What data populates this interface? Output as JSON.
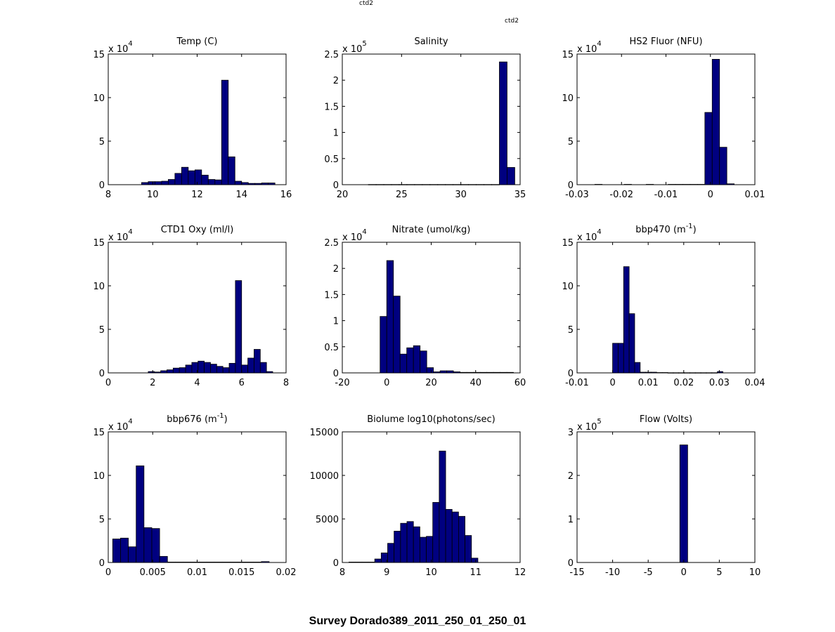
{
  "header": {
    "label1": "ctd2",
    "label2": "ctd2"
  },
  "suptitle": "Survey Dorado389_2011_250_01_250_01",
  "style": {
    "bar_fill": "#000080",
    "bar_stroke": "#000000"
  },
  "chart_data": [
    {
      "type": "bar",
      "title": "Temp (C)",
      "exp": "4",
      "xlim": [
        8,
        16
      ],
      "ylim": [
        0,
        15
      ],
      "xticks": [
        8,
        10,
        12,
        14,
        16
      ],
      "yticks": [
        0,
        5,
        10,
        15
      ],
      "xticklabels": [
        "8",
        "10",
        "12",
        "14",
        "16"
      ],
      "yticklabels": [
        "0",
        "5",
        "10",
        "15"
      ],
      "bin_start": 9.5,
      "bin_width": 0.3,
      "values": [
        0.25,
        0.35,
        0.35,
        0.4,
        0.6,
        1.3,
        2.0,
        1.6,
        1.7,
        1.1,
        0.6,
        0.55,
        12.0,
        3.2,
        0.4,
        0.25,
        0.15,
        0.15,
        0.2,
        0.2
      ]
    },
    {
      "type": "bar",
      "title": "Salinity",
      "exp": "5",
      "xlim": [
        20,
        35
      ],
      "ylim": [
        0,
        2.5
      ],
      "xticks": [
        20,
        25,
        30,
        35
      ],
      "yticks": [
        0,
        0.5,
        1,
        1.5,
        2,
        2.5
      ],
      "xticklabels": [
        "20",
        "25",
        "30",
        "35"
      ],
      "yticklabels": [
        "0",
        "0.5",
        "1",
        "1.5",
        "2",
        "2.5"
      ],
      "bin_start": 22.2,
      "bin_width": 0.65,
      "values": [
        0.004,
        0.004,
        0.004,
        0.004,
        0.004,
        0.004,
        0.004,
        0.004,
        0.004,
        0.004,
        0.004,
        0.004,
        0.004,
        0.004,
        0.004,
        0.004,
        0.004,
        2.35,
        0.33
      ]
    },
    {
      "type": "bar",
      "title": "HS2 Fluor (NFU)",
      "exp": "4",
      "xlim": [
        -0.03,
        0.01
      ],
      "ylim": [
        0,
        15
      ],
      "xticks": [
        -0.03,
        -0.02,
        -0.01,
        0,
        0.01
      ],
      "yticks": [
        0,
        5,
        10,
        15
      ],
      "xticklabels": [
        "-0.03",
        "-0.02",
        "-0.01",
        "0",
        "0.01"
      ],
      "yticklabels": [
        "0",
        "5",
        "10",
        "15"
      ],
      "bin_start": -0.026,
      "bin_width": 0.00165,
      "values": [
        0.04,
        0.0,
        0.0,
        0.0,
        0.04,
        0.0,
        0.0,
        0.04,
        0.0,
        0.0,
        0.04,
        0.04,
        0.04,
        0.04,
        0.04,
        8.3,
        14.4,
        4.3,
        0.1
      ]
    },
    {
      "type": "bar",
      "title": "CTD1 Oxy (ml/l)",
      "exp": "4",
      "xlim": [
        0,
        8
      ],
      "ylim": [
        0,
        15
      ],
      "xticks": [
        0,
        2,
        4,
        6,
        8
      ],
      "yticks": [
        0,
        5,
        10,
        15
      ],
      "xticklabels": [
        "0",
        "2",
        "4",
        "6",
        "8"
      ],
      "yticklabels": [
        "0",
        "5",
        "10",
        "15"
      ],
      "bin_start": 1.8,
      "bin_width": 0.28,
      "values": [
        0.15,
        0.1,
        0.25,
        0.35,
        0.55,
        0.6,
        0.9,
        1.2,
        1.35,
        1.2,
        1.0,
        0.75,
        0.6,
        1.1,
        10.6,
        0.9,
        1.7,
        2.7,
        1.2,
        0.15
      ]
    },
    {
      "type": "bar",
      "title": "Nitrate (umol/kg)",
      "exp": "4",
      "xlim": [
        -20,
        60
      ],
      "ylim": [
        0,
        2.5
      ],
      "xticks": [
        -20,
        0,
        20,
        40,
        60
      ],
      "yticks": [
        0,
        0.5,
        1,
        1.5,
        2,
        2.5
      ],
      "xticklabels": [
        "-20",
        "0",
        "20",
        "40",
        "60"
      ],
      "yticklabels": [
        "0",
        "0.5",
        "1",
        "1.5",
        "2",
        "2.5"
      ],
      "bin_start": -3,
      "bin_width": 3.0,
      "values": [
        1.08,
        2.15,
        1.47,
        0.36,
        0.48,
        0.52,
        0.42,
        0.1,
        0.02,
        0.04,
        0.04,
        0.02,
        0.01,
        0.01,
        0.01,
        0.01,
        0.01,
        0.01,
        0.01,
        0.01
      ]
    },
    {
      "type": "bar",
      "title": "bbp470 (m",
      "title_sup": "-1",
      "title_tail": ")",
      "exp": "4",
      "xlim": [
        -0.01,
        0.04
      ],
      "ylim": [
        0,
        15
      ],
      "xticks": [
        -0.01,
        0,
        0.01,
        0.02,
        0.03,
        0.04
      ],
      "yticks": [
        0,
        5,
        10,
        15
      ],
      "xticklabels": [
        "-0.01",
        "0",
        "0.01",
        "0.02",
        "0.03",
        "0.04"
      ],
      "yticklabels": [
        "0",
        "5",
        "10",
        "15"
      ],
      "bin_start": 0.0,
      "bin_width": 0.00155,
      "values": [
        3.4,
        3.4,
        12.2,
        6.8,
        1.2,
        0.08,
        0.08,
        0.08,
        0.04,
        0.04,
        0.02,
        0.02,
        0.02,
        0.02,
        0.02,
        0.02,
        0.02,
        0.02,
        0.02,
        0.15
      ]
    },
    {
      "type": "bar",
      "title": "bbp676 (m",
      "title_sup": "-1",
      "title_tail": ")",
      "exp": "4",
      "xlim": [
        0,
        0.02
      ],
      "ylim": [
        0,
        15
      ],
      "xticks": [
        0,
        0.005,
        0.01,
        0.015,
        0.02
      ],
      "yticks": [
        0,
        5,
        10,
        15
      ],
      "xticklabels": [
        "0",
        "0.005",
        "0.01",
        "0.015",
        "0.02"
      ],
      "yticklabels": [
        "0",
        "5",
        "10",
        "15"
      ],
      "bin_start": 0.0005,
      "bin_width": 0.00088,
      "values": [
        2.7,
        2.8,
        1.8,
        11.1,
        4.0,
        3.9,
        0.7,
        0.05,
        0.05,
        0.05,
        0.05,
        0.05,
        0.05,
        0.05,
        0.05,
        0.05,
        0.05,
        0.05,
        0.05,
        0.1
      ]
    },
    {
      "type": "bar",
      "title": "Biolume log10(photons/sec)",
      "exp": "",
      "xlim": [
        8,
        12
      ],
      "ylim": [
        0,
        15000
      ],
      "xticks": [
        8,
        9,
        10,
        11,
        12
      ],
      "yticks": [
        0,
        5000,
        10000,
        15000
      ],
      "xticklabels": [
        "8",
        "9",
        "10",
        "11",
        "12"
      ],
      "yticklabels": [
        "0",
        "5000",
        "10000",
        "15000"
      ],
      "bin_start": 8.15,
      "bin_width": 0.145,
      "values": [
        50,
        50,
        50,
        50,
        400,
        1100,
        2200,
        3600,
        4500,
        4700,
        4100,
        2900,
        3000,
        6900,
        12800,
        6100,
        5800,
        5300,
        3100,
        500
      ]
    },
    {
      "type": "bar",
      "title": "Flow (Volts)",
      "exp": "5",
      "xlim": [
        -15,
        10
      ],
      "ylim": [
        0,
        3
      ],
      "xticks": [
        -15,
        -10,
        -5,
        0,
        5,
        10
      ],
      "yticks": [
        0,
        1,
        2,
        3
      ],
      "xticklabels": [
        "-15",
        "-10",
        "-5",
        "0",
        "5",
        "10"
      ],
      "yticklabels": [
        "0",
        "1",
        "2",
        "3"
      ],
      "bin_start": -0.55,
      "bin_width": 1.1,
      "values": [
        2.7
      ]
    }
  ]
}
